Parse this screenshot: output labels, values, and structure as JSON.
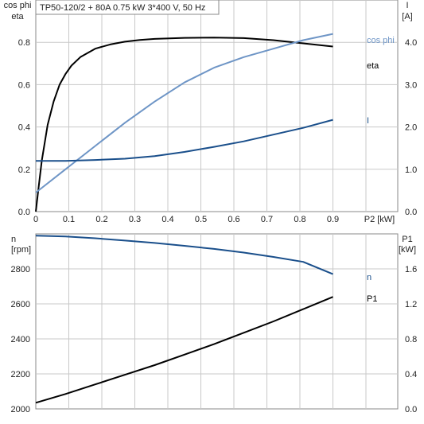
{
  "chart_data": [
    {
      "type": "line",
      "title": "TP50-120/2 + 80A   0.75 kW   3*400 V, 50 Hz",
      "xlabel": "P2 [kW]",
      "xlim": [
        0,
        1.0
      ],
      "xticks": [
        0,
        0.1,
        0.2,
        0.3,
        0.4,
        0.5,
        0.6,
        0.7,
        0.8,
        0.9
      ],
      "ylabel_left": [
        "cos phi",
        "eta"
      ],
      "ylim_left": [
        0,
        1.0
      ],
      "yticks_left": [
        0.0,
        0.2,
        0.4,
        0.6,
        0.8
      ],
      "ylabel_right": [
        "I",
        "[A]"
      ],
      "ylim_right": [
        0,
        5.0
      ],
      "yticks_right": [
        0.0,
        1.0,
        2.0,
        3.0,
        4.0
      ],
      "grid": true,
      "series": [
        {
          "name": "eta",
          "axis": "left",
          "color": "#000000",
          "x": [
            0,
            0.01,
            0.02,
            0.04,
            0.06,
            0.08,
            0.1,
            0.12,
            0.15,
            0.2,
            0.25,
            0.3,
            0.35,
            0.4,
            0.5,
            0.6,
            0.7,
            0.8,
            0.9,
            1.0
          ],
          "y": [
            0,
            0.12,
            0.24,
            0.41,
            0.52,
            0.6,
            0.65,
            0.69,
            0.73,
            0.77,
            0.79,
            0.803,
            0.811,
            0.816,
            0.821,
            0.822,
            0.82,
            0.81,
            0.795,
            0.78
          ]
        },
        {
          "name": "cos phi",
          "axis": "left",
          "color": "#6e95c6",
          "x": [
            0,
            0.1,
            0.2,
            0.3,
            0.4,
            0.5,
            0.6,
            0.7,
            0.8,
            0.9,
            1.0
          ],
          "y": [
            0.09,
            0.2,
            0.31,
            0.42,
            0.52,
            0.61,
            0.68,
            0.73,
            0.77,
            0.81,
            0.84
          ]
        },
        {
          "name": "I",
          "axis": "right",
          "color": "#1a4f8b",
          "x": [
            0,
            0.1,
            0.2,
            0.3,
            0.4,
            0.5,
            0.6,
            0.7,
            0.8,
            0.9,
            1.0
          ],
          "y": [
            1.2,
            1.2,
            1.22,
            1.25,
            1.31,
            1.41,
            1.53,
            1.66,
            1.82,
            1.98,
            2.17
          ]
        }
      ]
    },
    {
      "type": "line",
      "xlabel": "",
      "xlim": [
        0,
        1.0
      ],
      "ylabel_left": [
        "n",
        "[rpm]"
      ],
      "ylim_left": [
        2000,
        3000
      ],
      "yticks_left": [
        2000,
        2200,
        2400,
        2600,
        2800
      ],
      "ylabel_right": [
        "P1",
        "[kW]"
      ],
      "ylim_right": [
        0,
        2.0
      ],
      "yticks_right": [
        0.0,
        0.4,
        0.8,
        1.2,
        1.6
      ],
      "grid": true,
      "series": [
        {
          "name": "n",
          "axis": "left",
          "color": "#1a4f8b",
          "x": [
            0,
            0.1,
            0.2,
            0.3,
            0.4,
            0.5,
            0.6,
            0.7,
            0.8,
            0.9,
            1.0
          ],
          "y": [
            2990,
            2985,
            2975,
            2962,
            2948,
            2932,
            2914,
            2893,
            2868,
            2840,
            2770
          ]
        },
        {
          "name": "P1",
          "axis": "right",
          "color": "#000000",
          "x": [
            0,
            0.1,
            0.2,
            0.3,
            0.4,
            0.5,
            0.6,
            0.7,
            0.8,
            0.9,
            1.0
          ],
          "y": [
            0.07,
            0.17,
            0.28,
            0.39,
            0.5,
            0.62,
            0.74,
            0.87,
            1.0,
            1.14,
            1.28
          ]
        }
      ]
    }
  ]
}
